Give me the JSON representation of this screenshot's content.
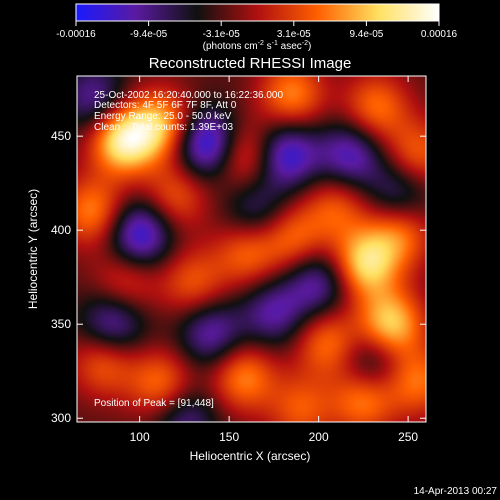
{
  "colorbar": {
    "tick_labels": [
      "-0.00016",
      "-9.4e-05",
      "-3.1e-05",
      "3.1e-05",
      "9.4e-05",
      "0.00016"
    ],
    "unit_main": "(photons cm",
    "unit_sup1": "-2",
    "unit_mid": " s",
    "unit_sup2": "-1",
    "unit_end": " asec",
    "unit_sup3": "-2",
    "unit_close": ")",
    "colors": [
      "#1a1aff",
      "#5a1aa0",
      "#101010",
      "#b01010",
      "#ff6000",
      "#ffe060",
      "#ffffff"
    ]
  },
  "chart_data": {
    "type": "heatmap",
    "title": "Reconstructed RHESSI Image",
    "xlabel": "Heliocentric X (arcsec)",
    "ylabel": "Heliocentric Y (arcsec)",
    "xlim": [
      65,
      260
    ],
    "ylim": [
      298,
      482
    ],
    "x_ticks": [
      100,
      150,
      200,
      250
    ],
    "y_ticks": [
      300,
      350,
      400,
      450
    ],
    "value_range": [
      -0.00016,
      0.00016
    ],
    "peak": [
      91,
      448
    ],
    "blobs": [
      {
        "x": 91,
        "y": 448,
        "v": 1.0
      },
      {
        "x": 112,
        "y": 456,
        "v": 0.7
      },
      {
        "x": 74,
        "y": 410,
        "v": 0.6
      },
      {
        "x": 120,
        "y": 418,
        "v": 0.45
      },
      {
        "x": 158,
        "y": 440,
        "v": 0.55
      },
      {
        "x": 185,
        "y": 472,
        "v": 0.6
      },
      {
        "x": 232,
        "y": 465,
        "v": 0.55
      },
      {
        "x": 255,
        "y": 440,
        "v": 0.5
      },
      {
        "x": 210,
        "y": 412,
        "v": 0.45
      },
      {
        "x": 245,
        "y": 398,
        "v": 0.55
      },
      {
        "x": 226,
        "y": 382,
        "v": 0.85
      },
      {
        "x": 186,
        "y": 396,
        "v": 0.5
      },
      {
        "x": 160,
        "y": 388,
        "v": 0.5
      },
      {
        "x": 130,
        "y": 372,
        "v": 0.45
      },
      {
        "x": 92,
        "y": 372,
        "v": 0.4
      },
      {
        "x": 80,
        "y": 330,
        "v": 0.5
      },
      {
        "x": 112,
        "y": 318,
        "v": 0.55
      },
      {
        "x": 158,
        "y": 322,
        "v": 0.6
      },
      {
        "x": 205,
        "y": 340,
        "v": 0.55
      },
      {
        "x": 240,
        "y": 350,
        "v": 0.85
      },
      {
        "x": 255,
        "y": 320,
        "v": 0.55
      },
      {
        "x": 225,
        "y": 310,
        "v": 0.6
      },
      {
        "x": 190,
        "y": 305,
        "v": 0.45
      },
      {
        "x": 140,
        "y": 345,
        "v": -0.55
      },
      {
        "x": 100,
        "y": 398,
        "v": -0.75
      },
      {
        "x": 138,
        "y": 446,
        "v": -0.85
      },
      {
        "x": 182,
        "y": 440,
        "v": -0.7
      },
      {
        "x": 218,
        "y": 440,
        "v": -0.6
      },
      {
        "x": 200,
        "y": 372,
        "v": -0.55
      },
      {
        "x": 85,
        "y": 350,
        "v": -0.6
      },
      {
        "x": 245,
        "y": 420,
        "v": -0.45
      },
      {
        "x": 175,
        "y": 356,
        "v": -0.5
      },
      {
        "x": 230,
        "y": 330,
        "v": -0.45
      },
      {
        "x": 125,
        "y": 300,
        "v": -0.45
      },
      {
        "x": 165,
        "y": 410,
        "v": -0.4
      },
      {
        "x": 75,
        "y": 470,
        "v": -0.5
      }
    ]
  },
  "annotations": {
    "time_range": "25-Oct-2002 16:20:40.000 to 16:22:36.000",
    "detectors": "Detectors: 4F 5F 6F 7F 8F, Att 0",
    "energy": "Energy Range: 25.0 - 50.0 keV",
    "clean": "Clean    Total counts: 1.39E+03",
    "peak": "Position of Peak = [91,448]"
  },
  "footer": {
    "timestamp": "14-Apr-2013 00:27"
  }
}
